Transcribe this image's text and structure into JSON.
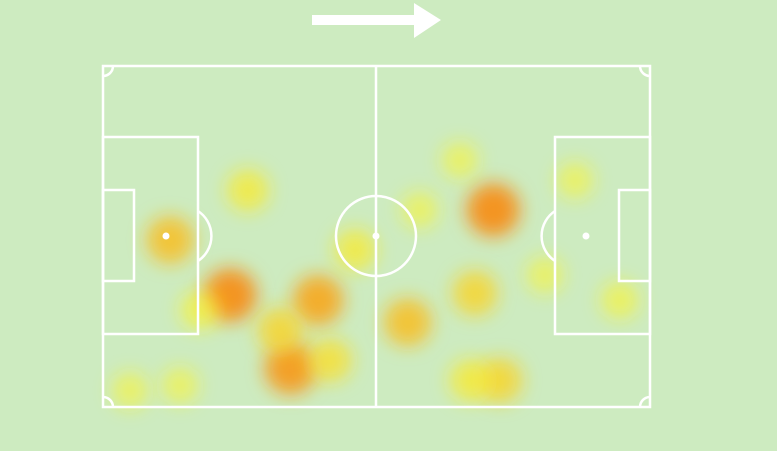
{
  "chart_data": {
    "type": "heatmap",
    "xlim": [
      0,
      105
    ],
    "ylim": [
      0,
      68
    ],
    "x": [
      12.9,
      27.8,
      24.4,
      41.3,
      36.0,
      43.6,
      34.0,
      48.4,
      58.5,
      71.4,
      74.9,
      68.5,
      76.2,
      70.5,
      84.8,
      90.6,
      99.2,
      5.2,
      14.8,
      18.6,
      60.8
    ],
    "y": [
      34.7,
      24.8,
      45.7,
      46.7,
      60.3,
      58.7,
      52.7,
      36.7,
      51.1,
      45.3,
      28.7,
      18.8,
      62.7,
      62.7,
      41.7,
      22.8,
      46.7,
      64.7,
      63.7,
      48.7,
      28.7
    ],
    "values": [
      0.7,
      0.5,
      0.9,
      0.8,
      0.85,
      0.55,
      0.6,
      0.5,
      0.7,
      0.6,
      0.9,
      0.3,
      0.6,
      0.5,
      0.3,
      0.3,
      0.35,
      0.3,
      0.3,
      0.4,
      0.3
    ]
  }
}
